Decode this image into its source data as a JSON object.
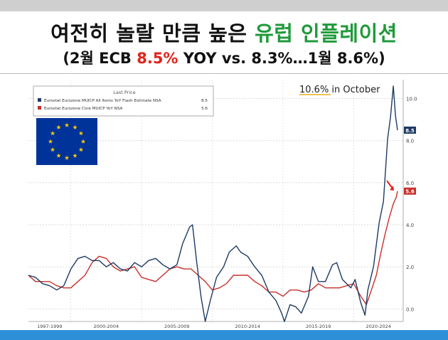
{
  "title": {
    "part1": "여전히 놀랄 만큼 높은 ",
    "part2": "유럽 인플레이션",
    "accent_color": "#1f9a3a"
  },
  "subtitle": {
    "part1": "(2월 ECB ",
    "highlight": "8.5%",
    "part2": " YOY vs. 8.3%…1월 8.6%)",
    "highlight_color": "#e0231b"
  },
  "annotation": "10.6% in October",
  "flag": {
    "name": "eu-flag",
    "background": "#003399",
    "star_color": "#ffcc00"
  },
  "chart_data": {
    "type": "line",
    "legend": {
      "header": "Last Price",
      "placement": "top-left",
      "entries": [
        {
          "name": "Eurostat Eurozone MUICP All Items YoY Flash Estimate NSA",
          "value": "8.5",
          "color": "#1d3a63"
        },
        {
          "name": "Eurostat Eurozone Core MUICP YoY NSA",
          "value": "5.6",
          "color": "#c8302c"
        }
      ]
    },
    "ylim": [
      -0.6,
      10.9
    ],
    "yticks": [
      "0.0",
      "2.0",
      "4.0",
      "6.0",
      "8.0",
      "10.0"
    ],
    "xlim": [
      1997,
      2023.5
    ],
    "x_categories": [
      "1997-1999",
      "2000-2004",
      "2005-2009",
      "2010-2014",
      "2015-2019",
      "2020-2024"
    ],
    "last_value_labels": [
      {
        "value": 8.5,
        "text": "8.5",
        "color": "#1d3a63"
      },
      {
        "value": 5.6,
        "text": "5.6",
        "color": "#c8302c"
      }
    ],
    "series": [
      {
        "name": "Eurostat Eurozone MUICP All Items YoY Flash Estimate NSA",
        "color": "#1d3a63",
        "points": [
          [
            1997.0,
            1.6
          ],
          [
            1997.5,
            1.5
          ],
          [
            1998.0,
            1.2
          ],
          [
            1998.5,
            1.1
          ],
          [
            1999.0,
            0.9
          ],
          [
            1999.5,
            1.1
          ],
          [
            2000.0,
            1.9
          ],
          [
            2000.5,
            2.4
          ],
          [
            2001.0,
            2.5
          ],
          [
            2001.5,
            2.3
          ],
          [
            2002.0,
            2.3
          ],
          [
            2002.5,
            2.0
          ],
          [
            2003.0,
            2.2
          ],
          [
            2003.5,
            1.9
          ],
          [
            2004.0,
            1.8
          ],
          [
            2004.5,
            2.2
          ],
          [
            2005.0,
            2.0
          ],
          [
            2005.5,
            2.3
          ],
          [
            2006.0,
            2.4
          ],
          [
            2006.5,
            2.1
          ],
          [
            2007.0,
            1.9
          ],
          [
            2007.5,
            2.1
          ],
          [
            2007.9,
            3.1
          ],
          [
            2008.4,
            3.9
          ],
          [
            2008.6,
            4.0
          ],
          [
            2008.9,
            2.2
          ],
          [
            2009.2,
            0.6
          ],
          [
            2009.5,
            -0.6
          ],
          [
            2009.9,
            0.5
          ],
          [
            2010.3,
            1.5
          ],
          [
            2010.8,
            2.0
          ],
          [
            2011.2,
            2.7
          ],
          [
            2011.7,
            3.0
          ],
          [
            2012.0,
            2.7
          ],
          [
            2012.5,
            2.5
          ],
          [
            2013.0,
            2.0
          ],
          [
            2013.5,
            1.6
          ],
          [
            2014.0,
            0.8
          ],
          [
            2014.5,
            0.4
          ],
          [
            2014.9,
            -0.2
          ],
          [
            2015.1,
            -0.6
          ],
          [
            2015.5,
            0.2
          ],
          [
            2015.9,
            0.1
          ],
          [
            2016.3,
            -0.2
          ],
          [
            2016.8,
            0.6
          ],
          [
            2017.1,
            2.0
          ],
          [
            2017.5,
            1.3
          ],
          [
            2018.0,
            1.3
          ],
          [
            2018.5,
            2.1
          ],
          [
            2018.8,
            2.2
          ],
          [
            2019.2,
            1.4
          ],
          [
            2019.8,
            1.0
          ],
          [
            2020.1,
            1.4
          ],
          [
            2020.5,
            0.3
          ],
          [
            2020.8,
            -0.3
          ],
          [
            2021.0,
            0.9
          ],
          [
            2021.4,
            2.0
          ],
          [
            2021.8,
            4.1
          ],
          [
            2022.1,
            5.1
          ],
          [
            2022.4,
            8.1
          ],
          [
            2022.6,
            9.1
          ],
          [
            2022.8,
            10.6
          ],
          [
            2022.95,
            9.2
          ],
          [
            2023.1,
            8.5
          ]
        ]
      },
      {
        "name": "Eurostat Eurozone Core MUICP YoY NSA",
        "color": "#c8302c",
        "points": [
          [
            1997.0,
            1.6
          ],
          [
            1997.5,
            1.3
          ],
          [
            1998.0,
            1.3
          ],
          [
            1998.5,
            1.3
          ],
          [
            1999.0,
            1.1
          ],
          [
            1999.5,
            1.0
          ],
          [
            2000.0,
            1.0
          ],
          [
            2000.5,
            1.3
          ],
          [
            2001.0,
            1.6
          ],
          [
            2001.5,
            2.2
          ],
          [
            2002.0,
            2.5
          ],
          [
            2002.5,
            2.4
          ],
          [
            2003.0,
            2.0
          ],
          [
            2003.5,
            1.8
          ],
          [
            2004.0,
            1.9
          ],
          [
            2004.5,
            2.0
          ],
          [
            2005.0,
            1.5
          ],
          [
            2005.5,
            1.4
          ],
          [
            2006.0,
            1.3
          ],
          [
            2006.5,
            1.6
          ],
          [
            2007.0,
            1.9
          ],
          [
            2007.5,
            2.0
          ],
          [
            2008.0,
            1.9
          ],
          [
            2008.5,
            1.9
          ],
          [
            2009.0,
            1.6
          ],
          [
            2009.5,
            1.3
          ],
          [
            2010.0,
            0.9
          ],
          [
            2010.5,
            1.0
          ],
          [
            2011.0,
            1.2
          ],
          [
            2011.5,
            1.6
          ],
          [
            2012.0,
            1.6
          ],
          [
            2012.5,
            1.6
          ],
          [
            2013.0,
            1.3
          ],
          [
            2013.5,
            1.1
          ],
          [
            2014.0,
            0.8
          ],
          [
            2014.5,
            0.8
          ],
          [
            2015.0,
            0.6
          ],
          [
            2015.5,
            0.9
          ],
          [
            2016.0,
            0.9
          ],
          [
            2016.5,
            0.8
          ],
          [
            2017.0,
            0.9
          ],
          [
            2017.5,
            1.2
          ],
          [
            2018.0,
            1.0
          ],
          [
            2018.5,
            1.0
          ],
          [
            2019.0,
            1.0
          ],
          [
            2019.5,
            1.1
          ],
          [
            2020.0,
            1.2
          ],
          [
            2020.5,
            0.6
          ],
          [
            2020.9,
            0.2
          ],
          [
            2021.2,
            0.8
          ],
          [
            2021.6,
            1.6
          ],
          [
            2021.9,
            2.6
          ],
          [
            2022.2,
            3.5
          ],
          [
            2022.5,
            4.3
          ],
          [
            2022.8,
            5.0
          ],
          [
            2023.0,
            5.3
          ],
          [
            2023.1,
            5.6
          ]
        ]
      }
    ]
  }
}
